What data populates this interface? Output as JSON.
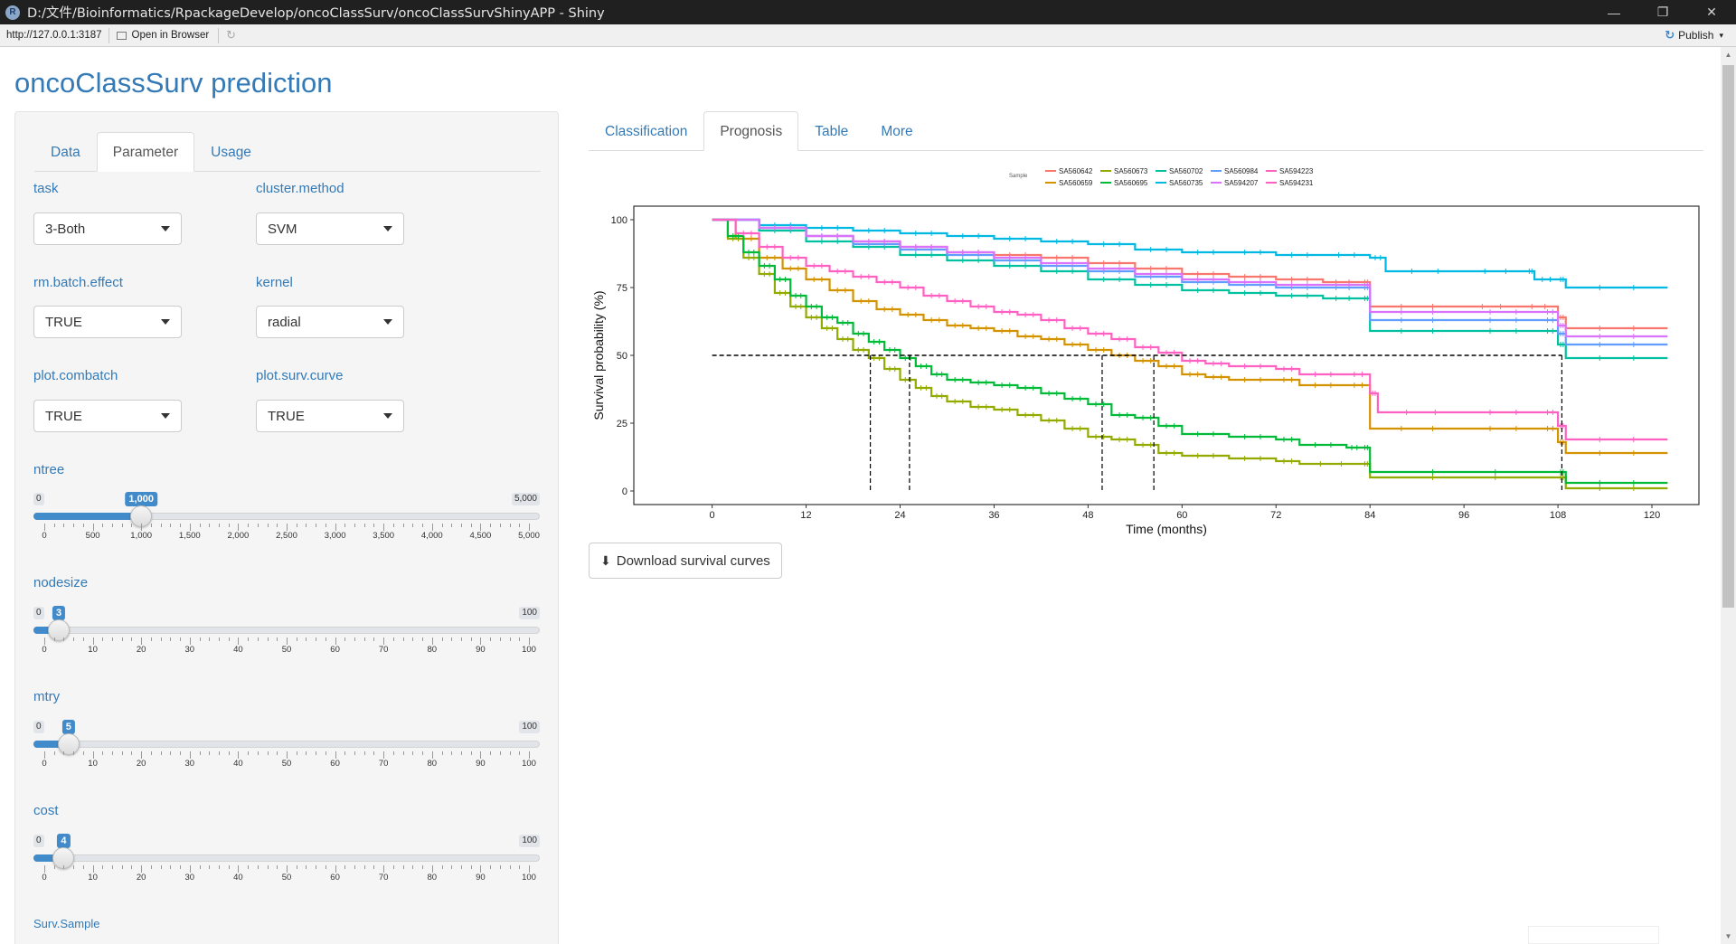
{
  "window": {
    "title": "D:/文件/Bioinformatics/RpackageDevelop/oncoClassSurv/oncoClassSurvShinyAPP - Shiny",
    "icon": "R",
    "minimize": "—",
    "restore": "❐",
    "close": "✕"
  },
  "toolbar": {
    "url": "http://127.0.0.1:3187",
    "open_browser": "Open in Browser",
    "refresh": "↻",
    "publish": "Publish",
    "publish_icon": "↻",
    "publish_caret": "▾"
  },
  "app_title": "oncoClassSurv prediction",
  "sidebar": {
    "tabs": [
      {
        "label": "Data",
        "active": false
      },
      {
        "label": "Parameter",
        "active": true
      },
      {
        "label": "Usage",
        "active": false
      }
    ],
    "fields": {
      "task": {
        "label": "task",
        "value": "3-Both"
      },
      "cluster_method": {
        "label": "cluster.method",
        "value": "SVM"
      },
      "rm_batch_effect": {
        "label": "rm.batch.effect",
        "value": "TRUE"
      },
      "kernel": {
        "label": "kernel",
        "value": "radial"
      },
      "plot_combatch": {
        "label": "plot.combatch",
        "value": "TRUE"
      },
      "plot_surv_curve": {
        "label": "plot.surv.curve",
        "value": "TRUE"
      }
    },
    "sliders": [
      {
        "key": "ntree",
        "label": "ntree",
        "min": 0,
        "max": 5000,
        "value": 1000,
        "min_label": "0",
        "max_label": "5,000",
        "value_label": "1,000",
        "ticks": [
          "0",
          "500",
          "1,000",
          "1,500",
          "2,000",
          "2,500",
          "3,000",
          "3,500",
          "4,000",
          "4,500",
          "5,000"
        ]
      },
      {
        "key": "nodesize",
        "label": "nodesize",
        "min": 0,
        "max": 100,
        "value": 3,
        "min_label": "0",
        "max_label": "100",
        "value_label": "3",
        "ticks": [
          "0",
          "10",
          "20",
          "30",
          "40",
          "50",
          "60",
          "70",
          "80",
          "90",
          "100"
        ]
      },
      {
        "key": "mtry",
        "label": "mtry",
        "min": 0,
        "max": 100,
        "value": 5,
        "min_label": "0",
        "max_label": "100",
        "value_label": "5",
        "ticks": [
          "0",
          "10",
          "20",
          "30",
          "40",
          "50",
          "60",
          "70",
          "80",
          "90",
          "100"
        ]
      },
      {
        "key": "cost",
        "label": "cost",
        "min": 0,
        "max": 100,
        "value": 4,
        "min_label": "0",
        "max_label": "100",
        "value_label": "4",
        "ticks": [
          "0",
          "10",
          "20",
          "30",
          "40",
          "50",
          "60",
          "70",
          "80",
          "90",
          "100"
        ]
      }
    ],
    "surv_sample_label": "Surv.Sample"
  },
  "main": {
    "tabs": [
      {
        "label": "Classification",
        "active": false
      },
      {
        "label": "Prognosis",
        "active": true
      },
      {
        "label": "Table",
        "active": false
      },
      {
        "label": "More",
        "active": false
      }
    ],
    "download_label": "Download survival curves",
    "download_icon": "download-icon"
  },
  "chart_data": {
    "type": "line",
    "title": "",
    "xlabel": "Time (months)",
    "ylabel": "Survival probability (%)",
    "xlim": [
      -10,
      126
    ],
    "ylim": [
      -5,
      105
    ],
    "xticks": [
      0,
      12,
      24,
      36,
      48,
      60,
      72,
      84,
      96,
      108,
      120
    ],
    "yticks": [
      0,
      25,
      50,
      75,
      100
    ],
    "grid": false,
    "legend_title": "Sample",
    "legend_position": "top",
    "median_line": {
      "y": 50,
      "x_from": 0,
      "x_to": 108.5
    },
    "median_drops": [
      20.2,
      25.2,
      49.8,
      56.4,
      108.5
    ],
    "series": [
      {
        "name": "SA560642",
        "color": "#F8766D",
        "points": [
          [
            0,
            100
          ],
          [
            6,
            97
          ],
          [
            12,
            94
          ],
          [
            18,
            92
          ],
          [
            24,
            90
          ],
          [
            30,
            88
          ],
          [
            36,
            87
          ],
          [
            42,
            86
          ],
          [
            48,
            84
          ],
          [
            54,
            82
          ],
          [
            60,
            80
          ],
          [
            66,
            79
          ],
          [
            72,
            78
          ],
          [
            78,
            77
          ],
          [
            83,
            77
          ],
          [
            84,
            68
          ],
          [
            96,
            68
          ],
          [
            103,
            68
          ],
          [
            108,
            64
          ],
          [
            109,
            60
          ],
          [
            122,
            60
          ]
        ]
      },
      {
        "name": "SA560659",
        "color": "#D39200",
        "points": [
          [
            0,
            100
          ],
          [
            3,
            93
          ],
          [
            6,
            86
          ],
          [
            9,
            82
          ],
          [
            12,
            78
          ],
          [
            15,
            74
          ],
          [
            18,
            70
          ],
          [
            21,
            67
          ],
          [
            24,
            65
          ],
          [
            27,
            63
          ],
          [
            30,
            61
          ],
          [
            33,
            60
          ],
          [
            36,
            59
          ],
          [
            39,
            57
          ],
          [
            42,
            56
          ],
          [
            45,
            54
          ],
          [
            48,
            52
          ],
          [
            51,
            50
          ],
          [
            54,
            48
          ],
          [
            57,
            46
          ],
          [
            60,
            43
          ],
          [
            63,
            42
          ],
          [
            66,
            41
          ],
          [
            72,
            41
          ],
          [
            75,
            39
          ],
          [
            81,
            39
          ],
          [
            84,
            23
          ],
          [
            96,
            23
          ],
          [
            106,
            23
          ],
          [
            108,
            18
          ],
          [
            109,
            14
          ],
          [
            122,
            14
          ]
        ]
      },
      {
        "name": "SA560673",
        "color": "#93AA00",
        "points": [
          [
            0,
            100
          ],
          [
            2,
            93
          ],
          [
            4,
            86
          ],
          [
            6,
            80
          ],
          [
            8,
            73
          ],
          [
            10,
            68
          ],
          [
            12,
            64
          ],
          [
            14,
            60
          ],
          [
            16,
            56
          ],
          [
            18,
            52
          ],
          [
            20,
            49
          ],
          [
            22,
            45
          ],
          [
            24,
            41
          ],
          [
            26,
            38
          ],
          [
            28,
            35
          ],
          [
            30,
            33
          ],
          [
            33,
            31
          ],
          [
            36,
            30
          ],
          [
            39,
            28
          ],
          [
            42,
            26
          ],
          [
            45,
            23
          ],
          [
            48,
            20
          ],
          [
            51,
            19
          ],
          [
            54,
            17
          ],
          [
            57,
            14
          ],
          [
            60,
            13
          ],
          [
            66,
            12
          ],
          [
            72,
            11
          ],
          [
            75,
            10
          ],
          [
            83,
            10
          ],
          [
            84,
            5
          ],
          [
            108,
            5
          ],
          [
            109,
            1
          ],
          [
            122,
            1
          ]
        ]
      },
      {
        "name": "SA560695",
        "color": "#00BA38",
        "points": [
          [
            0,
            100
          ],
          [
            2,
            94
          ],
          [
            4,
            88
          ],
          [
            6,
            83
          ],
          [
            8,
            78
          ],
          [
            10,
            72
          ],
          [
            12,
            68
          ],
          [
            14,
            64
          ],
          [
            16,
            62
          ],
          [
            18,
            58
          ],
          [
            20,
            55
          ],
          [
            22,
            52
          ],
          [
            24,
            49
          ],
          [
            26,
            46
          ],
          [
            28,
            43
          ],
          [
            30,
            41
          ],
          [
            33,
            40
          ],
          [
            36,
            39
          ],
          [
            39,
            38
          ],
          [
            42,
            36
          ],
          [
            45,
            34
          ],
          [
            48,
            32
          ],
          [
            51,
            28
          ],
          [
            54,
            27
          ],
          [
            57,
            24
          ],
          [
            60,
            21
          ],
          [
            66,
            20
          ],
          [
            72,
            19
          ],
          [
            75,
            17
          ],
          [
            81,
            16
          ],
          [
            83,
            16
          ],
          [
            84,
            7
          ],
          [
            108,
            7
          ],
          [
            109,
            3
          ],
          [
            122,
            3
          ]
        ]
      },
      {
        "name": "SA560702",
        "color": "#00C19F",
        "points": [
          [
            0,
            100
          ],
          [
            6,
            96
          ],
          [
            12,
            92
          ],
          [
            18,
            90
          ],
          [
            24,
            87
          ],
          [
            30,
            85
          ],
          [
            36,
            83
          ],
          [
            42,
            81
          ],
          [
            48,
            78
          ],
          [
            54,
            76
          ],
          [
            60,
            74
          ],
          [
            66,
            73
          ],
          [
            72,
            72
          ],
          [
            78,
            71
          ],
          [
            83,
            71
          ],
          [
            84,
            59
          ],
          [
            96,
            59
          ],
          [
            106,
            59
          ],
          [
            108,
            54
          ],
          [
            109,
            49
          ],
          [
            122,
            49
          ]
        ]
      },
      {
        "name": "SA560735",
        "color": "#00B9E3",
        "points": [
          [
            0,
            100
          ],
          [
            6,
            98
          ],
          [
            12,
            97
          ],
          [
            18,
            96
          ],
          [
            24,
            95
          ],
          [
            30,
            94
          ],
          [
            36,
            93
          ],
          [
            42,
            92
          ],
          [
            48,
            91
          ],
          [
            54,
            89
          ],
          [
            60,
            88
          ],
          [
            66,
            88
          ],
          [
            72,
            87
          ],
          [
            78,
            87
          ],
          [
            84,
            86
          ],
          [
            86,
            81
          ],
          [
            96,
            81
          ],
          [
            104,
            81
          ],
          [
            105,
            78
          ],
          [
            108,
            78
          ],
          [
            109,
            75
          ],
          [
            122,
            75
          ]
        ]
      },
      {
        "name": "SA560984",
        "color": "#619CFF",
        "points": [
          [
            0,
            100
          ],
          [
            6,
            97
          ],
          [
            12,
            94
          ],
          [
            18,
            91
          ],
          [
            24,
            89
          ],
          [
            30,
            87
          ],
          [
            36,
            85
          ],
          [
            42,
            83
          ],
          [
            48,
            81
          ],
          [
            54,
            79
          ],
          [
            60,
            77
          ],
          [
            66,
            76
          ],
          [
            72,
            75
          ],
          [
            78,
            75
          ],
          [
            83,
            75
          ],
          [
            84,
            63
          ],
          [
            96,
            63
          ],
          [
            106,
            63
          ],
          [
            108,
            58
          ],
          [
            109,
            54
          ],
          [
            122,
            54
          ]
        ]
      },
      {
        "name": "SA594207",
        "color": "#DB72FB",
        "points": [
          [
            0,
            100
          ],
          [
            6,
            97
          ],
          [
            12,
            94
          ],
          [
            18,
            92
          ],
          [
            24,
            90
          ],
          [
            30,
            88
          ],
          [
            36,
            86
          ],
          [
            42,
            84
          ],
          [
            48,
            82
          ],
          [
            54,
            80
          ],
          [
            60,
            78
          ],
          [
            66,
            77
          ],
          [
            72,
            76
          ],
          [
            78,
            76
          ],
          [
            83,
            76
          ],
          [
            84,
            66
          ],
          [
            96,
            66
          ],
          [
            106,
            66
          ],
          [
            108,
            61
          ],
          [
            109,
            57
          ],
          [
            122,
            57
          ]
        ]
      },
      {
        "name": "SA594223",
        "color": "#FF61C3",
        "points": [
          [
            0,
            100
          ],
          [
            3,
            95
          ],
          [
            6,
            90
          ],
          [
            9,
            86
          ],
          [
            12,
            83
          ],
          [
            15,
            81
          ],
          [
            18,
            79
          ],
          [
            21,
            77
          ],
          [
            24,
            75
          ],
          [
            27,
            72
          ],
          [
            30,
            70
          ],
          [
            33,
            68
          ],
          [
            36,
            66
          ],
          [
            39,
            65
          ],
          [
            42,
            63
          ],
          [
            45,
            60
          ],
          [
            48,
            58
          ],
          [
            51,
            56
          ],
          [
            54,
            53
          ],
          [
            57,
            51
          ],
          [
            60,
            48
          ],
          [
            63,
            47
          ],
          [
            66,
            46
          ],
          [
            72,
            45
          ],
          [
            75,
            43
          ],
          [
            81,
            43
          ],
          [
            84,
            36
          ],
          [
            85,
            29
          ],
          [
            96,
            29
          ],
          [
            106,
            29
          ],
          [
            108,
            24
          ],
          [
            109,
            19
          ],
          [
            122,
            19
          ]
        ]
      },
      {
        "name": "SA594231",
        "color": "#FF61C3",
        "points": []
      }
    ]
  }
}
